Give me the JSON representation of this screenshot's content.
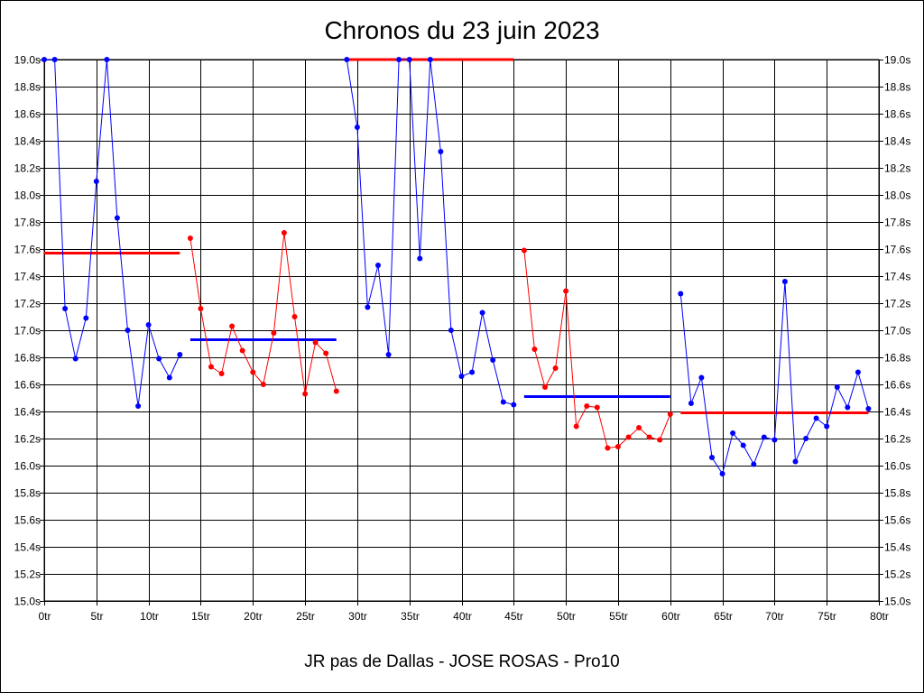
{
  "chart_data": {
    "type": "line",
    "title": "Chronos du 23 juin 2023",
    "subtitle": "JR pas de Dallas - JOSE ROSAS - Pro10",
    "xlim": [
      0,
      80
    ],
    "ylim": [
      15.0,
      19.0
    ],
    "x_ticks": [
      0,
      5,
      10,
      15,
      20,
      25,
      30,
      35,
      40,
      45,
      50,
      55,
      60,
      65,
      70,
      75,
      80
    ],
    "x_tick_labels": [
      "0tr",
      "5tr",
      "10tr",
      "15tr",
      "20tr",
      "25tr",
      "30tr",
      "35tr",
      "40tr",
      "45tr",
      "50tr",
      "55tr",
      "60tr",
      "65tr",
      "70tr",
      "75tr",
      "80tr"
    ],
    "y_ticks": [
      19.0,
      18.8,
      18.6,
      18.4,
      18.2,
      18.0,
      17.8,
      17.6,
      17.4,
      17.2,
      17.0,
      16.8,
      16.6,
      16.4,
      16.2,
      16.0,
      15.8,
      15.6,
      15.4,
      15.2,
      15.0
    ],
    "y_tick_labels": [
      "19.0s",
      "18.8s",
      "18.6s",
      "18.4s",
      "18.2s",
      "18.0s",
      "17.8s",
      "17.6s",
      "17.4s",
      "17.2s",
      "17.0s",
      "16.8s",
      "16.6s",
      "16.4s",
      "16.2s",
      "16.0s",
      "15.8s",
      "15.6s",
      "15.4s",
      "15.2s",
      "15.0s"
    ],
    "grid": true,
    "colors": {
      "blue": "#0000ff",
      "red": "#ff0000"
    },
    "series": [
      {
        "color": "#0000ff",
        "x": [
          0,
          1,
          2,
          3,
          4,
          5,
          6,
          7,
          8,
          9,
          10,
          11,
          12,
          13
        ],
        "values": [
          19.0,
          19.0,
          17.16,
          16.79,
          17.09,
          18.1,
          19.0,
          17.83,
          17.0,
          16.44,
          17.04,
          16.79,
          16.65,
          16.82
        ]
      },
      {
        "color": "#ff0000",
        "x": [
          14,
          15,
          16,
          17,
          18,
          19,
          20,
          21,
          22,
          23,
          24,
          25,
          26,
          27,
          28
        ],
        "values": [
          17.68,
          17.16,
          16.73,
          16.68,
          17.03,
          16.85,
          16.69,
          16.6,
          16.98,
          17.72,
          17.1,
          16.53,
          16.91,
          16.83,
          16.55
        ]
      },
      {
        "color": "#0000ff",
        "x": [
          29,
          30,
          31,
          32,
          33,
          34,
          35,
          36,
          37,
          38,
          39,
          40,
          41,
          42,
          43,
          44,
          45
        ],
        "values": [
          19.0,
          18.5,
          17.17,
          17.48,
          16.82,
          19.0,
          19.0,
          17.53,
          19.0,
          18.32,
          17.0,
          16.66,
          16.69,
          17.13,
          16.78,
          16.47,
          16.45
        ]
      },
      {
        "color": "#ff0000",
        "x": [
          46,
          47,
          48,
          49,
          50,
          51,
          52,
          53,
          54,
          55,
          56,
          57,
          58,
          59,
          60
        ],
        "values": [
          17.59,
          16.86,
          16.58,
          16.72,
          17.29,
          16.29,
          16.44,
          16.43,
          16.13,
          16.14,
          16.21,
          16.28,
          16.21,
          16.19,
          16.38
        ]
      },
      {
        "color": "#0000ff",
        "x": [
          61,
          62,
          63,
          64,
          65,
          66,
          67,
          68,
          69,
          70,
          71,
          72,
          73,
          74,
          75,
          76,
          77,
          78,
          79
        ],
        "values": [
          17.27,
          16.46,
          16.65,
          16.06,
          15.94,
          16.24,
          16.15,
          16.01,
          16.21,
          16.19,
          17.36,
          16.03,
          16.2,
          16.35,
          16.29,
          16.58,
          16.43,
          16.69,
          16.42
        ]
      }
    ],
    "averages": [
      {
        "color": "#ff0000",
        "x_start": 0,
        "x_end": 13,
        "value": 17.57
      },
      {
        "color": "#0000ff",
        "x_start": 14,
        "x_end": 28,
        "value": 16.93
      },
      {
        "color": "#ff0000",
        "x_start": 29,
        "x_end": 45,
        "value": 19.0
      },
      {
        "color": "#0000ff",
        "x_start": 46,
        "x_end": 60,
        "value": 16.51
      },
      {
        "color": "#ff0000",
        "x_start": 61,
        "x_end": 79,
        "value": 16.39
      }
    ]
  }
}
